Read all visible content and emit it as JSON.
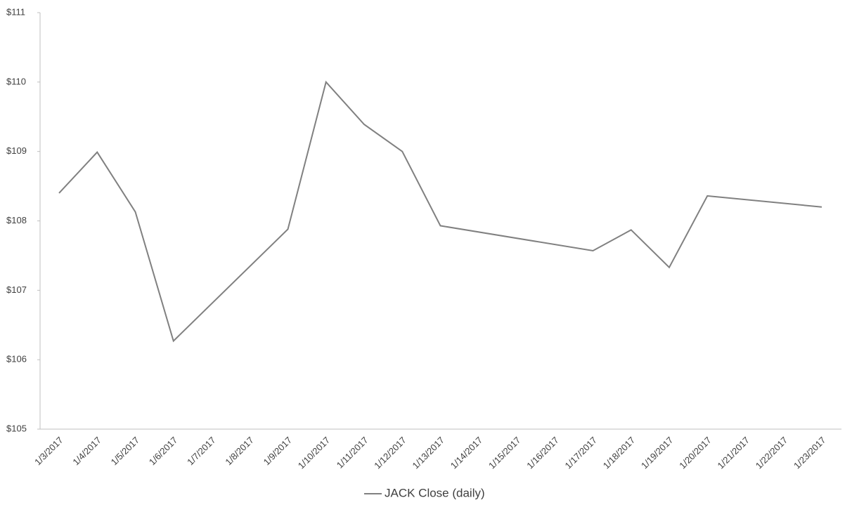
{
  "chart_data": {
    "type": "line",
    "x": [
      "1/3/2017",
      "1/4/2017",
      "1/5/2017",
      "1/6/2017",
      "1/9/2017",
      "1/10/2017",
      "1/11/2017",
      "1/12/2017",
      "1/13/2017",
      "1/17/2017",
      "1/18/2017",
      "1/19/2017",
      "1/20/2017",
      "1/23/2017"
    ],
    "series": [
      {
        "name": "JACK Close (daily)",
        "color": "#808080",
        "values": [
          108.4,
          108.99,
          108.13,
          106.27,
          107.88,
          110.0,
          109.39,
          109.0,
          107.93,
          107.57,
          107.87,
          107.33,
          108.36,
          108.2
        ]
      }
    ],
    "xticks": [
      "1/3/2017",
      "1/4/2017",
      "1/5/2017",
      "1/6/2017",
      "1/7/2017",
      "1/8/2017",
      "1/9/2017",
      "1/10/2017",
      "1/11/2017",
      "1/12/2017",
      "1/13/2017",
      "1/14/2017",
      "1/15/2017",
      "1/16/2017",
      "1/17/2017",
      "1/18/2017",
      "1/19/2017",
      "1/20/2017",
      "1/21/2017",
      "1/22/2017",
      "1/23/2017"
    ],
    "ylim": [
      105,
      111
    ],
    "yticks": [
      {
        "value": 105,
        "label": "$105"
      },
      {
        "value": 106,
        "label": "$106"
      },
      {
        "value": 107,
        "label": "$107"
      },
      {
        "value": 108,
        "label": "$108"
      },
      {
        "value": 109,
        "label": "$109"
      },
      {
        "value": 110,
        "label": "$110"
      },
      {
        "value": 111,
        "label": "$111"
      }
    ],
    "grid": false,
    "legend": "bottom"
  }
}
